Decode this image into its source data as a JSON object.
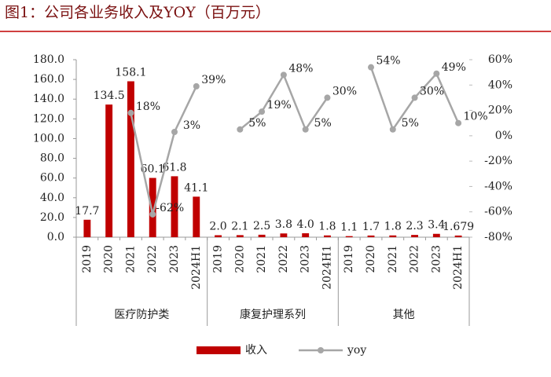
{
  "chart_data": {
    "type": "bar-line",
    "title": "图1：公司各业务收入及YOY（百万元）",
    "groups": [
      "医疗防护类",
      "康复护理系列",
      "其他"
    ],
    "categories": [
      "2019",
      "2020",
      "2021",
      "2022",
      "2023",
      "2024H1",
      "2019",
      "2020",
      "2021",
      "2022",
      "2023",
      "2024H1",
      "2019",
      "2020",
      "2021",
      "2022",
      "2023",
      "2024H1"
    ],
    "ylim": [
      0,
      180
    ],
    "yticks": [
      {
        "value": 0,
        "label": "0.0"
      },
      {
        "value": 20,
        "label": "20.0"
      },
      {
        "value": 40,
        "label": "40.0"
      },
      {
        "value": 60,
        "label": "60.0"
      },
      {
        "value": 80,
        "label": "80.0"
      },
      {
        "value": 100,
        "label": "100.0"
      },
      {
        "value": 120,
        "label": "120.0"
      },
      {
        "value": 140,
        "label": "140.0"
      },
      {
        "value": 160,
        "label": "160.0"
      },
      {
        "value": 180,
        "label": "180.0"
      }
    ],
    "y2lim": [
      -80,
      60
    ],
    "y2ticks": [
      {
        "value": -80,
        "label": "-80%"
      },
      {
        "value": -60,
        "label": "-60%"
      },
      {
        "value": -40,
        "label": "-40%"
      },
      {
        "value": -20,
        "label": "-20%"
      },
      {
        "value": 0,
        "label": "0%"
      },
      {
        "value": 20,
        "label": "20%"
      },
      {
        "value": 40,
        "label": "40%"
      },
      {
        "value": 60,
        "label": "60%"
      }
    ],
    "series": [
      {
        "name": "收入",
        "color": "#c00000",
        "values": [
          17.7,
          134.5,
          158.1,
          60.1,
          61.8,
          41.1,
          2.0,
          2.1,
          2.5,
          3.8,
          4.0,
          1.8,
          1.1,
          1.7,
          1.8,
          2.3,
          3.4,
          1.679
        ],
        "value_labels": [
          "17.7",
          "134.5",
          "158.1",
          "60.1",
          "61.8",
          "41.1",
          "2.0",
          "2.1",
          "2.5",
          "3.8",
          "4.0",
          "1.8",
          "1.1",
          "1.7",
          "1.8",
          "2.3",
          "3.4",
          "1.679"
        ]
      },
      {
        "name": "yoy",
        "color": "#a6a6a6",
        "axis": "y2",
        "values": [
          null,
          null,
          18,
          -62,
          3,
          39,
          null,
          5,
          19,
          48,
          5,
          30,
          null,
          54,
          5,
          30,
          49,
          10
        ],
        "value_labels": [
          null,
          null,
          "18%",
          "-62%",
          "3%",
          "39%",
          null,
          "5%",
          "19%",
          "48%",
          "5%",
          "30%",
          null,
          "54%",
          "5%",
          "30%",
          "49%",
          "10%"
        ]
      }
    ],
    "legend": "bottom"
  }
}
